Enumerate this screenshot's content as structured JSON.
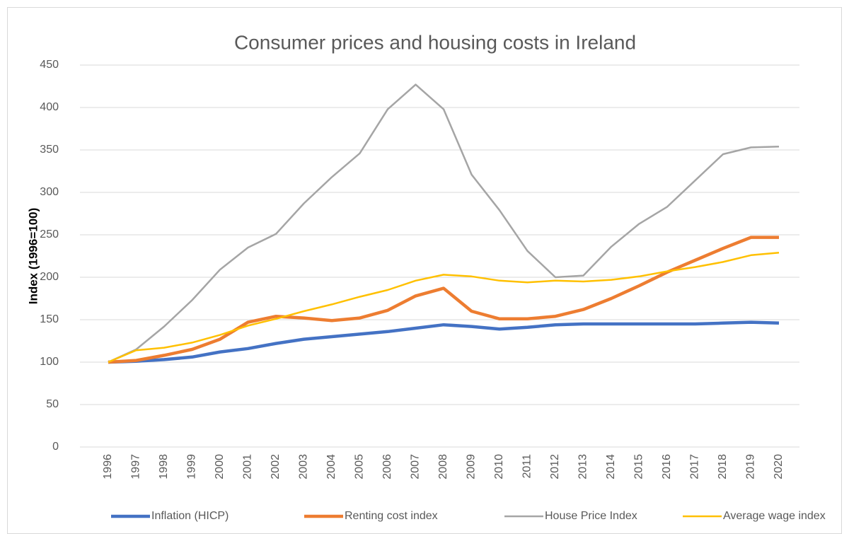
{
  "chart_data": {
    "type": "line",
    "title": "Consumer prices and housing costs in Ireland",
    "y_label": "Index (1996=100)",
    "categories": [
      "1996",
      "1997",
      "1998",
      "1999",
      "2000",
      "2001",
      "2002",
      "2003",
      "2004",
      "2005",
      "2006",
      "2007",
      "2008",
      "2009",
      "2010",
      "2011",
      "2012",
      "2013",
      "2014",
      "2015",
      "2016",
      "2017",
      "2018",
      "2019",
      "2020"
    ],
    "series": [
      {
        "name": "Inflation (HICP)",
        "color": "#4472c4",
        "values": [
          100,
          101,
          103,
          106,
          112,
          116,
          122,
          127,
          130,
          133,
          136,
          140,
          144,
          142,
          139,
          141,
          144,
          145,
          145,
          145,
          145,
          145,
          146,
          147,
          146
        ]
      },
      {
        "name": "Renting cost index",
        "color": "#ed7d31",
        "values": [
          100,
          102,
          108,
          115,
          127,
          147,
          154,
          152,
          149,
          152,
          161,
          178,
          187,
          160,
          151,
          151,
          154,
          162,
          175,
          190,
          206,
          220,
          234,
          247,
          247
        ]
      },
      {
        "name": "House Price Index",
        "color": "#a5a5a5",
        "values": [
          100,
          115,
          142,
          173,
          209,
          235,
          251,
          287,
          318,
          346,
          398,
          427,
          398,
          321,
          279,
          231,
          200,
          202,
          236,
          263,
          283,
          314,
          345,
          353,
          354
        ]
      },
      {
        "name": "Average wage index",
        "color": "#ffc000",
        "values": [
          100,
          114,
          117,
          123,
          132,
          143,
          151,
          160,
          168,
          177,
          185,
          196,
          203,
          201,
          196,
          194,
          196,
          195,
          197,
          201,
          207,
          212,
          218,
          226,
          229
        ]
      }
    ],
    "ylim": [
      0,
      450
    ],
    "yticks": [
      0,
      50,
      100,
      150,
      200,
      250,
      300,
      350,
      400,
      450
    ],
    "grid": true,
    "legend": "bottom"
  }
}
